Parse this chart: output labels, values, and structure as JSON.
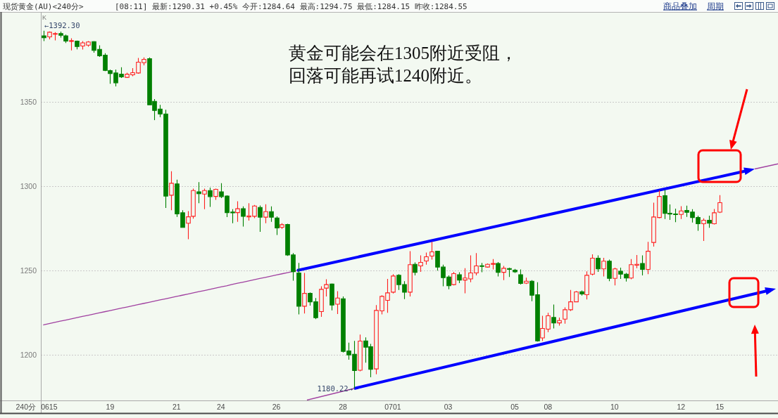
{
  "chart_data": {
    "type": "candlestick",
    "title": "现货黄金(AU)<240分>",
    "subtitle": "[08:11] 最新:1290.31 +0.45% 今开:1284.64 最高:1294.75 最低:1284.15 昨收:1284.55",
    "categories": [
      null,
      "0615",
      null,
      null,
      null,
      null,
      null,
      null,
      null,
      null,
      null,
      null,
      "19",
      null,
      null,
      null,
      null,
      null,
      null,
      null,
      null,
      null,
      null,
      null,
      "21",
      null,
      null,
      null,
      null,
      null,
      null,
      null,
      "24",
      null,
      null,
      null,
      null,
      null,
      null,
      null,
      null,
      null,
      "26",
      null,
      null,
      null,
      null,
      null,
      null,
      null,
      null,
      null,
      null,
      null,
      "28",
      null,
      null,
      null,
      null,
      null,
      null,
      null,
      null,
      "0701",
      null,
      null,
      null,
      null,
      null,
      null,
      null,
      null,
      null,
      "03",
      null,
      null,
      null,
      null,
      null,
      null,
      null,
      null,
      null,
      null,
      null,
      "05",
      null,
      null,
      null,
      null,
      null,
      "08",
      null,
      null,
      null,
      null,
      null,
      null,
      null,
      null,
      null,
      null,
      null,
      "10",
      null,
      null,
      null,
      null,
      null,
      null,
      null,
      null,
      null,
      null,
      null,
      "12",
      null,
      null,
      null,
      null,
      null,
      null,
      "15"
    ],
    "ohlc": [
      [
        1389.2,
        1392.3,
        1386.1,
        1388.1
      ],
      [
        1388.6,
        1391.9,
        1387.2,
        1391.4
      ],
      [
        1390.3,
        1391.4,
        1386.5,
        1390.6
      ],
      [
        1390.6,
        1391.7,
        1388.2,
        1389.6
      ],
      [
        1389.2,
        1390.0,
        1385.0,
        1386.1
      ],
      [
        1386.1,
        1387.8,
        1380.6,
        1386.4
      ],
      [
        1386.1,
        1386.4,
        1381.2,
        1382.9
      ],
      [
        1383.2,
        1386.1,
        1381.1,
        1385.1
      ],
      [
        1383.7,
        1386.1,
        1382.8,
        1385.6
      ],
      [
        1385.8,
        1386.1,
        1379.2,
        1380.6
      ],
      [
        1381.2,
        1383.6,
        1376.7,
        1377.4
      ],
      [
        1377.8,
        1378.9,
        1368.3,
        1368.7
      ],
      [
        1368.6,
        1369.2,
        1360.8,
        1366.9
      ],
      [
        1367.2,
        1369.2,
        1359.3,
        1361.4
      ],
      [
        1366.5,
        1370.6,
        1364.2,
        1364.9
      ],
      [
        1364.6,
        1367.4,
        1364.2,
        1366.5
      ],
      [
        1366.1,
        1370.1,
        1365.3,
        1367.4
      ],
      [
        1367.2,
        1376.1,
        1366.7,
        1373.6
      ],
      [
        1373.3,
        1376.4,
        1371.8,
        1375.3
      ],
      [
        1375.7,
        1376.4,
        1348.3,
        1348.3
      ],
      [
        1350.4,
        1351.7,
        1339.2,
        1345.0
      ],
      [
        1345.8,
        1348.3,
        1341.0,
        1342.9
      ],
      [
        1342.9,
        1345.4,
        1287.2,
        1294.2
      ],
      [
        1294.7,
        1308.9,
        1285.8,
        1301.8
      ],
      [
        1301.4,
        1303.9,
        1281.9,
        1283.6
      ],
      [
        1284.3,
        1285.8,
        1275.6,
        1275.6
      ],
      [
        1278.1,
        1285.3,
        1268.6,
        1281.9
      ],
      [
        1282.2,
        1298.6,
        1280.8,
        1297.5
      ],
      [
        1296.7,
        1302.5,
        1290.0,
        1295.6
      ],
      [
        1295.4,
        1298.6,
        1286.4,
        1297.5
      ],
      [
        1297.5,
        1299.2,
        1287.8,
        1293.9
      ],
      [
        1294.0,
        1298.6,
        1292.0,
        1298.2
      ],
      [
        1296.7,
        1301.9,
        1293.0,
        1293.9
      ],
      [
        1294.2,
        1294.7,
        1281.7,
        1284.4
      ],
      [
        1284.7,
        1286.4,
        1278.1,
        1284.4
      ],
      [
        1284.4,
        1291.1,
        1278.9,
        1286.7
      ],
      [
        1286.7,
        1288.1,
        1276.1,
        1282.2
      ],
      [
        1281.9,
        1290.0,
        1279.7,
        1282.5
      ],
      [
        1282.2,
        1288.9,
        1281.1,
        1288.3
      ],
      [
        1287.5,
        1288.6,
        1273.0,
        1281.7
      ],
      [
        1281.7,
        1289.4,
        1278.1,
        1285.0
      ],
      [
        1285.0,
        1288.1,
        1278.9,
        1281.7
      ],
      [
        1281.2,
        1282.2,
        1271.1,
        1275.3
      ],
      [
        1275.7,
        1278.1,
        1274.7,
        1277.2
      ],
      [
        1277.4,
        1277.8,
        1258.7,
        1259.3
      ],
      [
        1259.3,
        1260.4,
        1244.0,
        1249.4
      ],
      [
        1248.6,
        1254.6,
        1224.0,
        1228.9
      ],
      [
        1228.9,
        1248.6,
        1224.6,
        1236.5
      ],
      [
        1236.5,
        1237.1,
        1229.2,
        1231.5
      ],
      [
        1231.5,
        1233.7,
        1221.2,
        1222.1
      ],
      [
        1225.7,
        1240.7,
        1222.6,
        1238.9
      ],
      [
        1239.6,
        1244.9,
        1234.7,
        1241.7
      ],
      [
        1242.0,
        1242.4,
        1226.4,
        1229.6
      ],
      [
        1230.1,
        1237.8,
        1224.3,
        1233.7
      ],
      [
        1233.3,
        1234.7,
        1201.4,
        1202.1
      ],
      [
        1202.4,
        1207.3,
        1197.2,
        1200.0
      ],
      [
        1200.4,
        1208.3,
        1180.22,
        1190.7
      ],
      [
        1190.9,
        1212.1,
        1190.3,
        1208.2
      ],
      [
        1208.3,
        1210.4,
        1195.4,
        1204.6
      ],
      [
        1204.9,
        1206.5,
        1186.8,
        1191.5
      ],
      [
        1191.7,
        1229.6,
        1188.5,
        1226.4
      ],
      [
        1226.1,
        1235.4,
        1224.0,
        1234.7
      ],
      [
        1232.4,
        1245.1,
        1225.0,
        1236.8
      ],
      [
        1237.2,
        1247.9,
        1236.4,
        1246.8
      ],
      [
        1247.2,
        1247.9,
        1238.5,
        1241.7
      ],
      [
        1241.7,
        1243.7,
        1233.1,
        1237.2
      ],
      [
        1237.2,
        1261.5,
        1234.7,
        1253.5
      ],
      [
        1253.7,
        1254.9,
        1247.2,
        1249.0
      ],
      [
        1252.8,
        1259.0,
        1249.3,
        1254.9
      ],
      [
        1255.7,
        1260.7,
        1253.5,
        1258.2
      ],
      [
        1258.6,
        1267.1,
        1256.5,
        1261.1
      ],
      [
        1261.5,
        1261.8,
        1250.0,
        1252.1
      ],
      [
        1252.1,
        1253.5,
        1240.7,
        1245.8
      ],
      [
        1246.2,
        1247.2,
        1238.9,
        1241.0
      ],
      [
        1241.7,
        1249.3,
        1241.2,
        1248.2
      ],
      [
        1247.6,
        1249.0,
        1242.6,
        1244.4
      ],
      [
        1244.4,
        1251.4,
        1236.5,
        1245.6
      ],
      [
        1245.1,
        1259.0,
        1243.1,
        1248.6
      ],
      [
        1248.6,
        1260.4,
        1247.2,
        1252.8
      ],
      [
        1252.9,
        1254.6,
        1249.0,
        1252.6
      ],
      [
        1252.1,
        1254.2,
        1251.8,
        1253.7
      ],
      [
        1253.7,
        1256.9,
        1250.7,
        1254.2
      ],
      [
        1254.2,
        1255.1,
        1246.5,
        1249.0
      ],
      [
        1249.0,
        1252.8,
        1244.4,
        1251.4
      ],
      [
        1251.2,
        1251.8,
        1246.2,
        1250.7
      ],
      [
        1250.3,
        1251.0,
        1248.6,
        1249.3
      ],
      [
        1247.6,
        1250.7,
        1241.7,
        1242.4
      ],
      [
        1242.6,
        1245.8,
        1242.1,
        1243.7
      ],
      [
        1243.7,
        1244.4,
        1231.9,
        1235.4
      ],
      [
        1235.7,
        1243.1,
        1207.9,
        1208.3
      ],
      [
        1210.1,
        1223.2,
        1208.3,
        1215.7
      ],
      [
        1215.3,
        1225.0,
        1213.5,
        1223.2
      ],
      [
        1222.2,
        1229.9,
        1215.7,
        1219.0
      ],
      [
        1219.0,
        1222.2,
        1217.4,
        1220.4
      ],
      [
        1221.2,
        1228.2,
        1218.5,
        1226.8
      ],
      [
        1226.8,
        1238.5,
        1226.0,
        1231.5
      ],
      [
        1231.5,
        1237.9,
        1231.2,
        1237.4
      ],
      [
        1237.5,
        1238.2,
        1235.2,
        1236.1
      ],
      [
        1235.7,
        1249.6,
        1232.9,
        1247.2
      ],
      [
        1247.9,
        1259.7,
        1247.2,
        1257.4
      ],
      [
        1257.4,
        1259.0,
        1249.3,
        1251.0
      ],
      [
        1251.0,
        1257.6,
        1246.5,
        1255.6
      ],
      [
        1255.6,
        1256.5,
        1243.7,
        1245.4
      ],
      [
        1245.4,
        1251.8,
        1241.2,
        1251.0
      ],
      [
        1249.6,
        1251.8,
        1245.1,
        1247.9
      ],
      [
        1247.9,
        1248.6,
        1243.5,
        1245.6
      ],
      [
        1245.6,
        1256.9,
        1244.9,
        1253.5
      ],
      [
        1253.2,
        1259.3,
        1251.4,
        1253.7
      ],
      [
        1254.2,
        1259.0,
        1247.2,
        1250.7
      ],
      [
        1250.7,
        1267.1,
        1247.9,
        1261.5
      ],
      [
        1266.7,
        1290.3,
        1264.3,
        1281.8
      ],
      [
        1281.5,
        1297.6,
        1281.0,
        1294.0
      ],
      [
        1294.4,
        1297.9,
        1280.6,
        1284.0
      ],
      [
        1284.0,
        1289.3,
        1280.1,
        1283.6
      ],
      [
        1283.6,
        1286.8,
        1278.7,
        1283.2
      ],
      [
        1283.3,
        1288.2,
        1280.6,
        1285.4
      ],
      [
        1285.7,
        1288.5,
        1281.9,
        1284.6
      ],
      [
        1284.7,
        1286.4,
        1278.5,
        1281.5
      ],
      [
        1281.5,
        1282.6,
        1273.6,
        1277.8
      ],
      [
        1277.8,
        1281.0,
        1267.6,
        1279.9
      ],
      [
        1279.9,
        1282.6,
        1275.4,
        1278.1
      ],
      [
        1277.8,
        1286.5,
        1277.4,
        1284.3
      ],
      [
        1284.64,
        1294.75,
        1284.15,
        1290.31
      ]
    ],
    "colors": [
      "#008000",
      "#ff2020",
      "#ff2020",
      "#008000",
      "#008000",
      "#ff2020",
      "#008000",
      "#ff2020",
      "#ff2020",
      "#008000",
      "#008000",
      "#008000",
      "#008000",
      "#008000",
      "#008000",
      "#ff2020",
      "#ff2020",
      "#ff2020",
      "#ff2020",
      "#008000",
      "#008000",
      "#008000",
      "#008000",
      "#ff2020",
      "#008000",
      "#008000",
      "#ff2020",
      "#ff2020",
      "#008000",
      "#ff2020",
      "#008000",
      "#ff2020",
      "#008000",
      "#008000",
      "#008000",
      "#ff2020",
      "#008000",
      "#ff2020",
      "#ff2020",
      "#008000",
      "#ff2020",
      "#008000",
      "#008000",
      "#ff2020",
      "#008000",
      "#008000",
      "#008000",
      "#ff2020",
      "#008000",
      "#008000",
      "#ff2020",
      "#ff2020",
      "#008000",
      "#ff2020",
      "#008000",
      "#008000",
      "#008000",
      "#ff2020",
      "#008000",
      "#008000",
      "#ff2020",
      "#ff2020",
      "#ff2020",
      "#ff2020",
      "#008000",
      "#008000",
      "#ff2020",
      "#008000",
      "#ff2020",
      "#ff2020",
      "#ff2020",
      "#008000",
      "#008000",
      "#008000",
      "#ff2020",
      "#008000",
      "#ff2020",
      "#ff2020",
      "#ff2020",
      "#008000",
      "#ff2020",
      "#ff2020",
      "#008000",
      "#ff2020",
      "#008000",
      "#008000",
      "#008000",
      "#ff2020",
      "#008000",
      "#008000",
      "#ff2020",
      "#ff2020",
      "#008000",
      "#ff2020",
      "#ff2020",
      "#ff2020",
      "#ff2020",
      "#008000",
      "#ff2020",
      "#ff2020",
      "#008000",
      "#ff2020",
      "#008000",
      "#ff2020",
      "#008000",
      "#008000",
      "#ff2020",
      "#ff2020",
      "#008000",
      "#ff2020",
      "#ff2020",
      "#ff2020",
      "#008000",
      "#008000",
      "#008000",
      "#ff2020",
      "#008000",
      "#008000",
      "#008000",
      "#ff2020",
      "#008000",
      "#ff2020",
      "#ff2020"
    ],
    "series": [
      {
        "type": "line",
        "color": "#a040a0",
        "values": [
          1217.8,
          1218.6,
          1219.3,
          1220.0,
          1220.7,
          1221.4,
          1222.1,
          1222.8,
          1223.5,
          1224.2,
          1224.9,
          1225.6,
          1226.3,
          1227.0,
          1227.7,
          1228.4,
          1229.1,
          1229.8,
          1230.5,
          1231.2,
          1231.9,
          1232.6,
          1233.3,
          1234.0,
          1234.7,
          1235.4,
          1236.1,
          1236.8,
          1237.5,
          1238.2,
          1238.9,
          1239.6,
          1240.3,
          1241.0,
          1241.8,
          1242.5,
          1243.2,
          1243.9,
          1244.6,
          1245.3,
          1246.0,
          1246.7,
          1247.4,
          1248.1,
          1248.8,
          1249.5,
          1250.2,
          null,
          null,
          null,
          null,
          null,
          null,
          null,
          null,
          null,
          null,
          null,
          null,
          null,
          null,
          null,
          null,
          null,
          null,
          null,
          null,
          null,
          null,
          null,
          null,
          null,
          null,
          null,
          null,
          null,
          null,
          null,
          null,
          null,
          null,
          null,
          null,
          null,
          null,
          null,
          null,
          null,
          null,
          null,
          null,
          null,
          null,
          null,
          null,
          null,
          null,
          null,
          null,
          null,
          null,
          null,
          null,
          null,
          null,
          null,
          null,
          null,
          null,
          null,
          null,
          null,
          null,
          null,
          null,
          null,
          null,
          null,
          null,
          null,
          null,
          null,
          null
        ]
      }
    ],
    "ylim": [
      1173,
      1403
    ],
    "yticks": [
      1200,
      1250,
      1300,
      1350
    ],
    "grid": "y",
    "annotations": [
      "K",
      {
        "text": "←1392.30",
        "y": 1392.3
      },
      "1180.22→",
      "黄金可能会在1305附近受阻，回落可能再试1240附近。",
      "240分",
      "商品叠加",
      "周期"
    ]
  }
}
